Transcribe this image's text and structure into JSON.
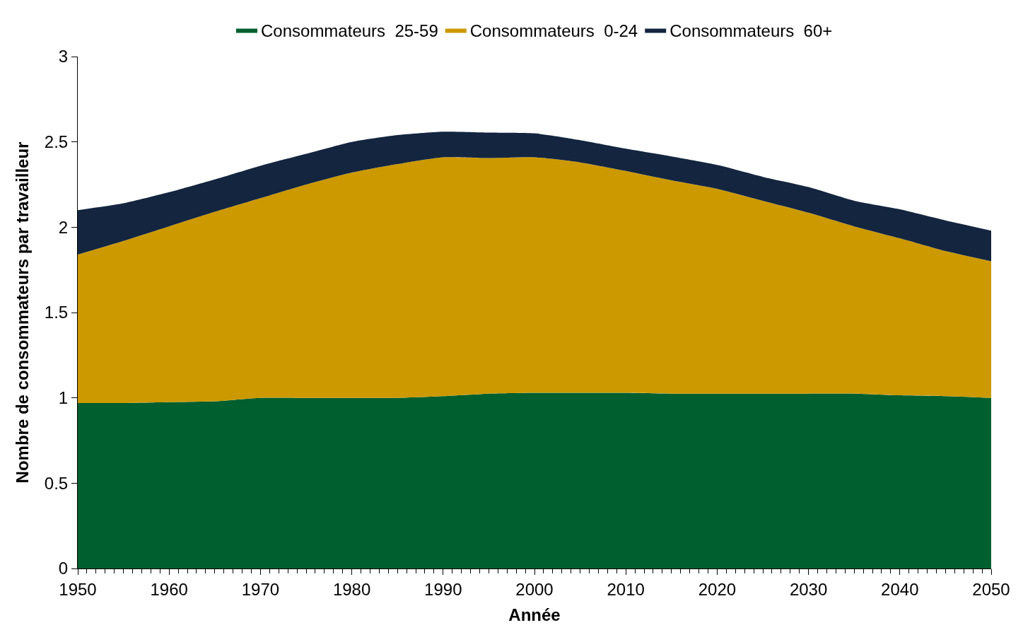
{
  "chart_data": {
    "type": "area",
    "stacked": true,
    "xlabel": "Année",
    "ylabel": "Nombre de consommateurs par travailleur",
    "x": [
      1950,
      1955,
      1960,
      1965,
      1970,
      1975,
      1980,
      1985,
      1990,
      1995,
      2000,
      2005,
      2010,
      2015,
      2020,
      2025,
      2030,
      2035,
      2040,
      2045,
      2050
    ],
    "series": [
      {
        "name": "Consommateurs  25-59",
        "color": "#005f2f",
        "values": [
          0.97,
          0.97,
          0.975,
          0.98,
          1.0,
          1.0,
          1.0,
          1.0,
          1.01,
          1.025,
          1.03,
          1.03,
          1.03,
          1.025,
          1.025,
          1.025,
          1.025,
          1.025,
          1.015,
          1.01,
          1.0
        ]
      },
      {
        "name": "Consommateurs  0-24",
        "color": "#cc9900",
        "values": [
          0.87,
          0.95,
          1.03,
          1.11,
          1.17,
          1.25,
          1.32,
          1.37,
          1.4,
          1.38,
          1.38,
          1.35,
          1.3,
          1.25,
          1.2,
          1.13,
          1.06,
          0.98,
          0.92,
          0.85,
          0.8
        ]
      },
      {
        "name": "Consommateurs  60+",
        "color": "#13253f",
        "values": [
          0.26,
          0.22,
          0.2,
          0.19,
          0.19,
          0.18,
          0.18,
          0.17,
          0.15,
          0.15,
          0.14,
          0.13,
          0.13,
          0.14,
          0.14,
          0.14,
          0.15,
          0.15,
          0.17,
          0.18,
          0.18
        ]
      }
    ],
    "xlim": [
      1950,
      2050
    ],
    "xticks": [
      1950,
      1960,
      1970,
      1980,
      1990,
      2000,
      2010,
      2020,
      2030,
      2040,
      2050
    ],
    "ylim": [
      0,
      3
    ],
    "yticks": [
      0,
      0.5,
      1,
      1.5,
      2,
      2.5,
      3
    ],
    "legend": "top"
  }
}
